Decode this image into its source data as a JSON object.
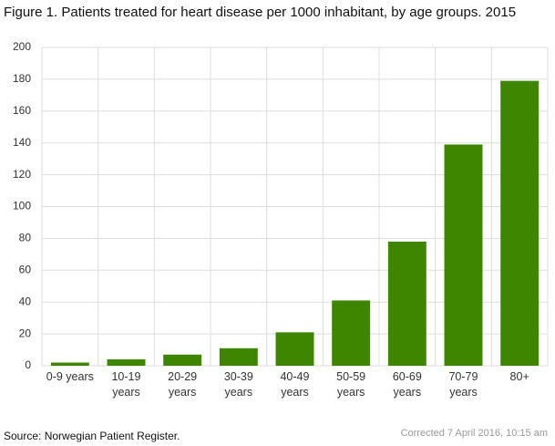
{
  "chart_data": {
    "type": "bar",
    "title": "Figure 1. Patients treated for heart disease per 1000 inhabitant, by age groups. 2015",
    "categories": [
      "0-9 years",
      "10-19 years",
      "20-29 years",
      "30-39 years",
      "40-49 years",
      "50-59 years",
      "60-69 years",
      "70-79 years",
      "80+"
    ],
    "values": [
      2,
      4,
      7,
      11,
      21,
      41,
      78,
      139,
      179
    ],
    "color": "#3f8600",
    "ylim": [
      0,
      200
    ],
    "yticks": [
      0,
      20,
      40,
      60,
      80,
      100,
      120,
      140,
      160,
      180,
      200
    ],
    "grid": true,
    "source": "Source: Norwegian Patient Register.",
    "note": "Corrected 7 April 2016, 10:15 am"
  }
}
